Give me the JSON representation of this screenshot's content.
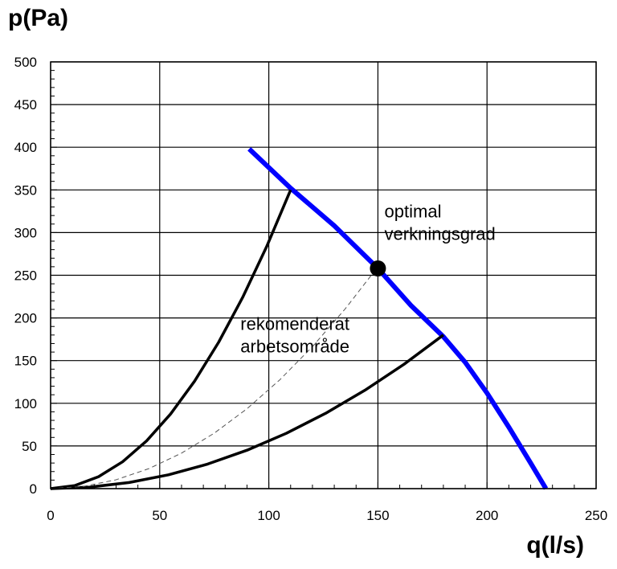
{
  "chart_data": {
    "type": "line",
    "title": "",
    "xlabel": "q(l/s)",
    "ylabel": "p(Pa)",
    "xlim": [
      0,
      250
    ],
    "ylim": [
      0,
      500
    ],
    "x_ticks": [
      0,
      50,
      100,
      150,
      200,
      250
    ],
    "y_ticks": [
      0,
      50,
      100,
      150,
      200,
      250,
      300,
      350,
      400,
      450,
      500
    ],
    "grid": true,
    "legend": "none",
    "series": [
      {
        "color": "#0000ff",
        "style": "solid",
        "points": [
          [
            91,
            398
          ],
          [
            110,
            352
          ],
          [
            130,
            308
          ],
          [
            150,
            258
          ],
          [
            165,
            215
          ],
          [
            180,
            178
          ],
          [
            190,
            148
          ],
          [
            200,
            112
          ],
          [
            210,
            72
          ],
          [
            220,
            30
          ],
          [
            227,
            0
          ]
        ]
      },
      {
        "color": "#000000",
        "style": "solid",
        "points": [
          [
            0,
            0
          ],
          [
            11,
            3.5
          ],
          [
            22,
            14
          ],
          [
            33,
            31.5
          ],
          [
            44,
            56
          ],
          [
            55,
            87.5
          ],
          [
            66,
            126
          ],
          [
            77,
            171.5
          ],
          [
            88,
            224
          ],
          [
            99,
            283.5
          ],
          [
            110,
            350
          ]
        ]
      },
      {
        "color": "#000000",
        "style": "solid",
        "points": [
          [
            0,
            0
          ],
          [
            18,
            1.8
          ],
          [
            36,
            7.2
          ],
          [
            54,
            16.2
          ],
          [
            72,
            28.8
          ],
          [
            90,
            45
          ],
          [
            108,
            64.8
          ],
          [
            126,
            88.2
          ],
          [
            144,
            115.2
          ],
          [
            162,
            145.8
          ],
          [
            180,
            180
          ]
        ]
      },
      {
        "color": "#000000",
        "style": "dashed",
        "points": [
          [
            0,
            0
          ],
          [
            15,
            2.6
          ],
          [
            30,
            10.4
          ],
          [
            45,
            23.4
          ],
          [
            60,
            41.6
          ],
          [
            75,
            65
          ],
          [
            90,
            93.6
          ],
          [
            105,
            127.4
          ],
          [
            120,
            166.4
          ],
          [
            135,
            210.6
          ],
          [
            150,
            260
          ]
        ]
      }
    ],
    "markers": [
      {
        "x": 150,
        "y": 258,
        "color": "#000000"
      }
    ],
    "annotations": [
      {
        "lines": [
          "optimal",
          "verkningsgrad"
        ],
        "x": 153,
        "y": 318
      },
      {
        "lines": [
          "rekomenderat",
          "arbetsområde"
        ],
        "x": 87,
        "y": 186
      }
    ]
  }
}
